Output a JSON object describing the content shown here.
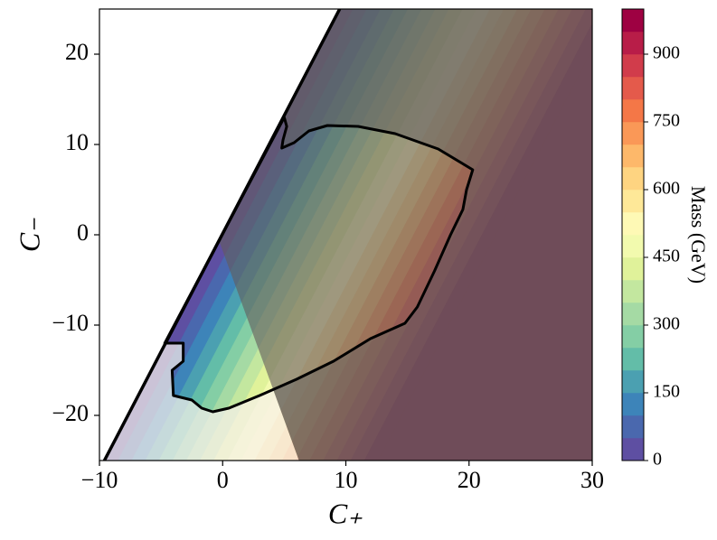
{
  "chart_data": {
    "type": "filled-contour",
    "xlabel": "C₊",
    "ylabel": "C₋",
    "colorbar_label": "Mass (GeV)",
    "xlim": [
      -10,
      30
    ],
    "ylim": [
      -25,
      25
    ],
    "xticks": [
      {
        "value": -10,
        "label": "−10"
      },
      0,
      10,
      20,
      30
    ],
    "yticks": [
      {
        "value": -20,
        "label": "−20"
      },
      {
        "value": -10,
        "label": "−10"
      },
      0,
      10,
      20
    ],
    "levels": [
      0,
      50,
      100,
      150,
      200,
      250,
      300,
      350,
      400,
      450,
      500,
      550,
      600,
      650,
      700,
      750,
      800,
      850,
      900,
      950,
      1000
    ],
    "level_x0": [
      -9.6,
      -8.49,
      -7.38,
      -6.27,
      -5.16,
      -4.04,
      -2.93,
      -1.82,
      -0.71,
      0.4,
      1.51,
      2.62,
      3.73,
      4.84,
      5.96,
      7.07,
      8.18,
      9.29,
      10.4,
      11.51,
      12.62
    ],
    "colors": [
      "#5e4fa2",
      "#4a68ae",
      "#3d84b9",
      "#4ba0b1",
      "#63bda8",
      "#84cea5",
      "#a5daa4",
      "#c3e79f",
      "#e0f29a",
      "#f2faae",
      "#fef9b5",
      "#fee898",
      "#fed481",
      "#fdb86a",
      "#fa9857",
      "#f47747",
      "#e45a4b",
      "#d13c4b",
      "#b81d48",
      "#9e0142"
    ],
    "colorbar_ticks": [
      0,
      150,
      300,
      450,
      600,
      750,
      900
    ],
    "edge": {
      "x": [
        -9.6,
        9.5
      ],
      "y": [
        -25,
        25
      ]
    },
    "shade_line": {
      "x": [
        -0.2,
        6.2
      ],
      "y": [
        -1,
        -25
      ]
    },
    "contour": {
      "x": [
        -4.7,
        -3.2,
        -3.2,
        -4.1,
        -4,
        -2.5,
        -1.7,
        -0.8,
        0.5,
        3,
        6,
        9,
        12,
        14.8,
        15.8,
        17.2,
        18.5,
        19.5,
        19.8,
        20.3,
        17.5,
        14,
        11,
        8.5,
        7,
        5.8,
        4.8,
        4.9,
        5.2,
        5
      ],
      "y": [
        -12,
        -12,
        -14,
        -15,
        -17.8,
        -18.3,
        -19.2,
        -19.6,
        -19.2,
        -17.8,
        -16,
        -14,
        -11.5,
        -9.8,
        -8,
        -4,
        0,
        2.8,
        5,
        7.2,
        9.5,
        11.2,
        12,
        12.1,
        11.5,
        10.2,
        9.6,
        10.5,
        12,
        13
      ]
    }
  }
}
